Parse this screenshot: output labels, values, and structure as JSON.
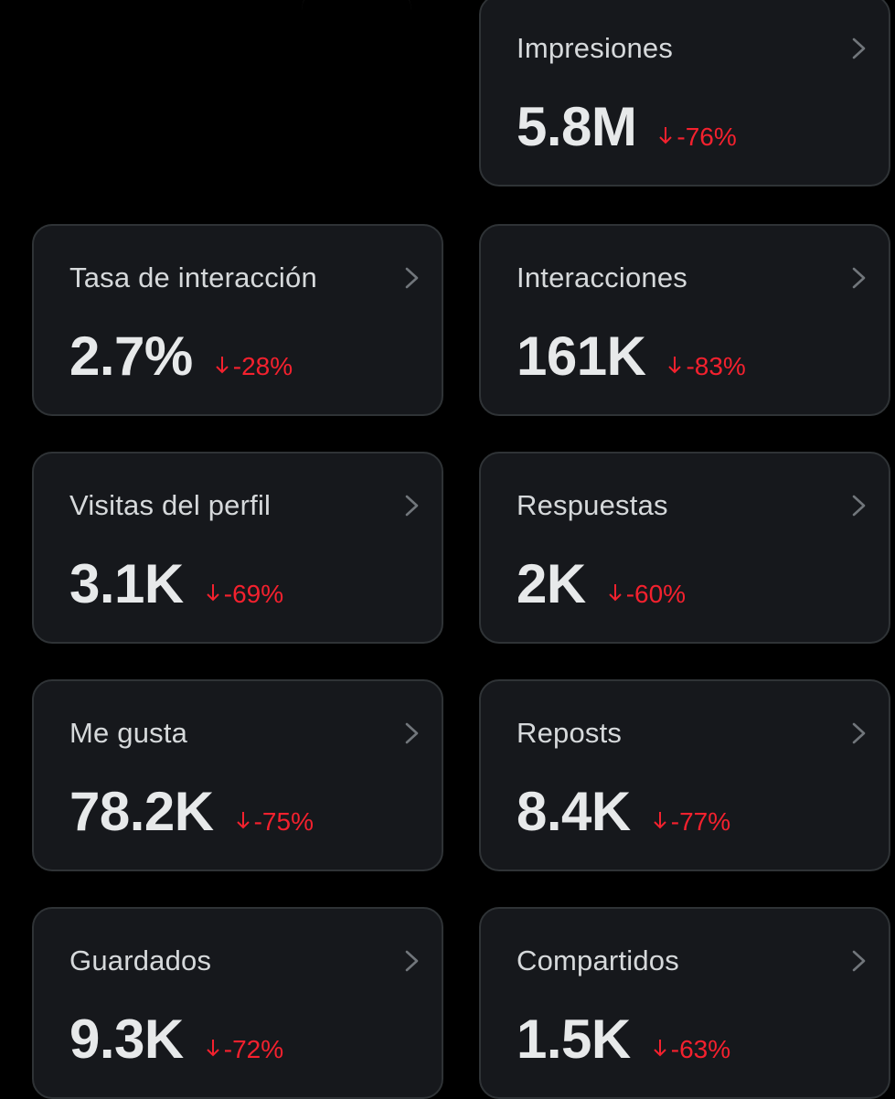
{
  "colors": {
    "background": "#000000",
    "card_background": "#16181c",
    "card_border": "#2f3336",
    "label": "#d6d9db",
    "value": "#e7e9ea",
    "decrease": "#f4212e"
  },
  "icons": {
    "chevron": "chevron-right-icon",
    "trend": "arrow-down-icon"
  },
  "metrics": [
    {
      "label": "Impresiones",
      "value": "5.8M",
      "change": "-76%"
    },
    {
      "label": "Tasa de interacción",
      "value": "2.7%",
      "change": "-28%"
    },
    {
      "label": "Interacciones",
      "value": "161K",
      "change": "-83%"
    },
    {
      "label": "Visitas del perfil",
      "value": "3.1K",
      "change": "-69%"
    },
    {
      "label": "Respuestas",
      "value": "2K",
      "change": "-60%"
    },
    {
      "label": "Me gusta",
      "value": "78.2K",
      "change": "-75%"
    },
    {
      "label": "Reposts",
      "value": "8.4K",
      "change": "-77%"
    },
    {
      "label": "Guardados",
      "value": "9.3K",
      "change": "-72%"
    },
    {
      "label": "Compartidos",
      "value": "1.5K",
      "change": "-63%"
    }
  ]
}
